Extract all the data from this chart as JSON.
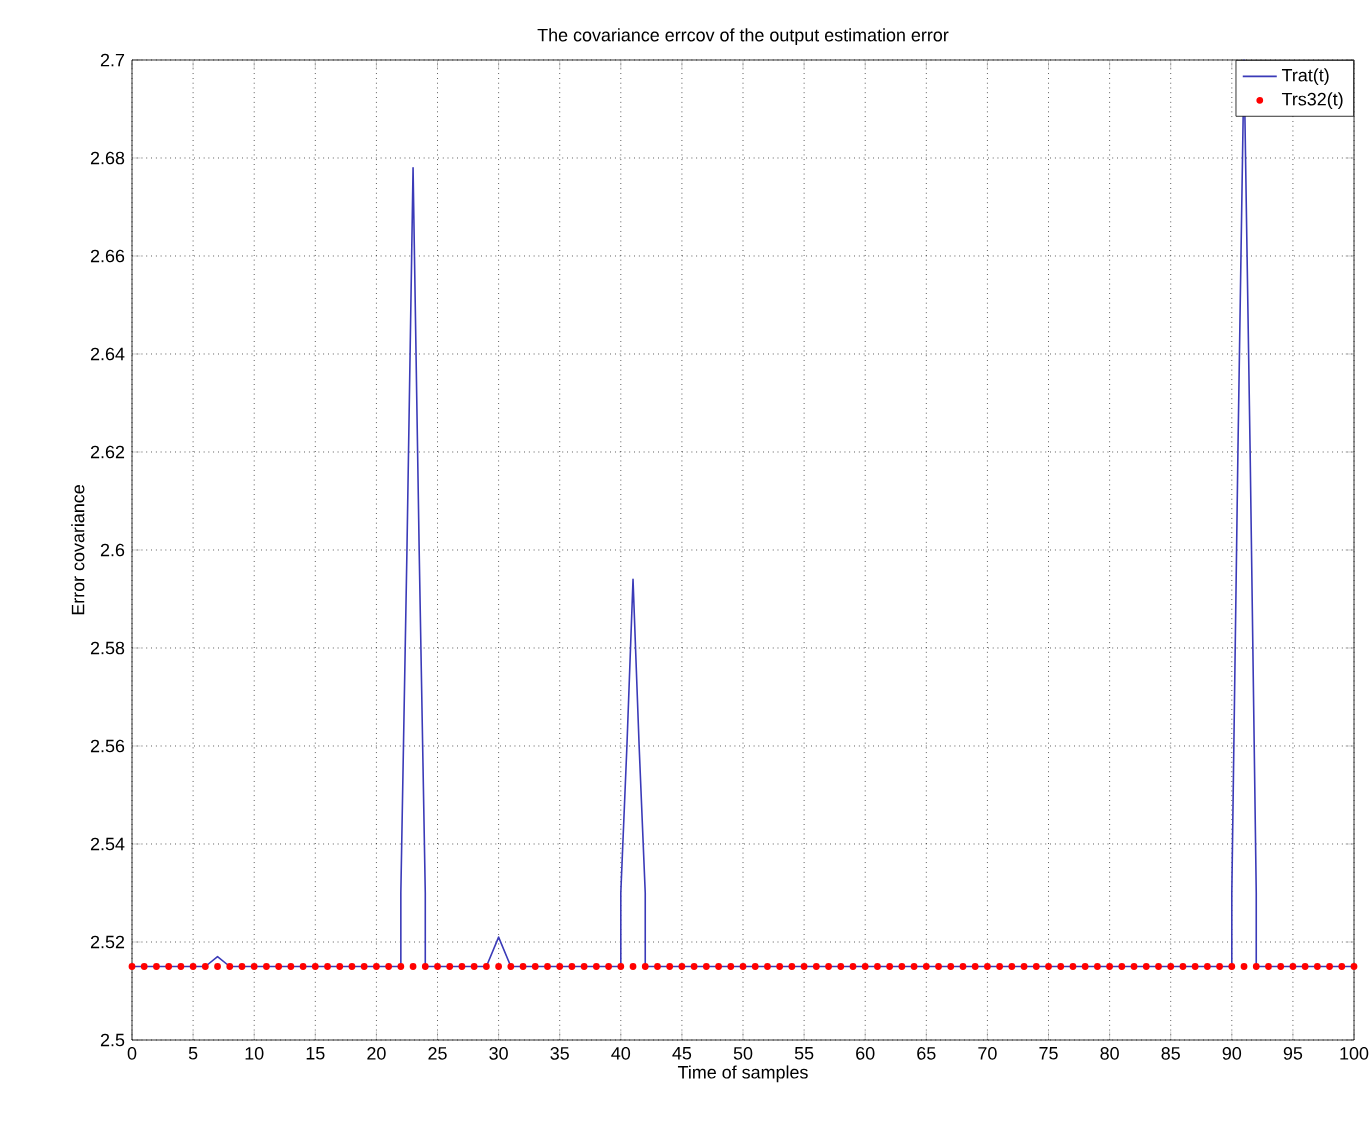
{
  "chart_data": {
    "type": "line",
    "title": "The covariance errcov of the output estimation error",
    "xlabel": "Time of samples",
    "ylabel": "Error covariance",
    "xlim": [
      0,
      100
    ],
    "ylim": [
      2.5,
      2.7
    ],
    "xticks": [
      0,
      5,
      10,
      15,
      20,
      25,
      30,
      35,
      40,
      45,
      50,
      55,
      60,
      65,
      70,
      75,
      80,
      85,
      90,
      95,
      100
    ],
    "yticks": [
      2.5,
      2.52,
      2.54,
      2.56,
      2.58,
      2.6,
      2.62,
      2.64,
      2.66,
      2.68,
      2.7
    ],
    "grid": true,
    "legend": "top right",
    "series": [
      {
        "name": "Trat(t)",
        "color": "#3a3ab8",
        "marker": "none",
        "line_style": "solid",
        "x": [
          0,
          6,
          7,
          8,
          22,
          22,
          22.5,
          23,
          23.5,
          24,
          24,
          29,
          30,
          31,
          40,
          40,
          40.5,
          41,
          41.5,
          42,
          42,
          90,
          90,
          90.5,
          91,
          91.5,
          92,
          92,
          100
        ],
        "values": [
          2.515,
          2.515,
          2.517,
          2.515,
          2.515,
          2.53,
          2.6,
          2.678,
          2.6,
          2.53,
          2.515,
          2.515,
          2.521,
          2.515,
          2.515,
          2.53,
          2.56,
          2.594,
          2.56,
          2.53,
          2.515,
          2.515,
          2.53,
          2.62,
          2.7,
          2.62,
          2.53,
          2.515,
          2.515
        ]
      },
      {
        "name": "Trs32(t)",
        "type": "scatter",
        "color": "#ff0000",
        "marker": "circle",
        "x": [
          0,
          1,
          2,
          3,
          4,
          5,
          6,
          7,
          8,
          9,
          10,
          11,
          12,
          13,
          14,
          15,
          16,
          17,
          18,
          19,
          20,
          21,
          22,
          23,
          24,
          25,
          26,
          27,
          28,
          29,
          30,
          31,
          32,
          33,
          34,
          35,
          36,
          37,
          38,
          39,
          40,
          41,
          42,
          43,
          44,
          45,
          46,
          47,
          48,
          49,
          50,
          51,
          52,
          53,
          54,
          55,
          56,
          57,
          58,
          59,
          60,
          61,
          62,
          63,
          64,
          65,
          66,
          67,
          68,
          69,
          70,
          71,
          72,
          73,
          74,
          75,
          76,
          77,
          78,
          79,
          80,
          81,
          82,
          83,
          84,
          85,
          86,
          87,
          88,
          89,
          90,
          91,
          92,
          93,
          94,
          95,
          96,
          97,
          98,
          99,
          100
        ],
        "values": [
          2.515,
          2.515,
          2.515,
          2.515,
          2.515,
          2.515,
          2.515,
          2.515,
          2.515,
          2.515,
          2.515,
          2.515,
          2.515,
          2.515,
          2.515,
          2.515,
          2.515,
          2.515,
          2.515,
          2.515,
          2.515,
          2.515,
          2.515,
          2.515,
          2.515,
          2.515,
          2.515,
          2.515,
          2.515,
          2.515,
          2.515,
          2.515,
          2.515,
          2.515,
          2.515,
          2.515,
          2.515,
          2.515,
          2.515,
          2.515,
          2.515,
          2.515,
          2.515,
          2.515,
          2.515,
          2.515,
          2.515,
          2.515,
          2.515,
          2.515,
          2.515,
          2.515,
          2.515,
          2.515,
          2.515,
          2.515,
          2.515,
          2.515,
          2.515,
          2.515,
          2.515,
          2.515,
          2.515,
          2.515,
          2.515,
          2.515,
          2.515,
          2.515,
          2.515,
          2.515,
          2.515,
          2.515,
          2.515,
          2.515,
          2.515,
          2.515,
          2.515,
          2.515,
          2.515,
          2.515,
          2.515,
          2.515,
          2.515,
          2.515,
          2.515,
          2.515,
          2.515,
          2.515,
          2.515,
          2.515,
          2.515,
          2.515,
          2.515,
          2.515,
          2.515,
          2.515,
          2.515,
          2.515,
          2.515,
          2.515,
          2.515
        ]
      }
    ]
  }
}
